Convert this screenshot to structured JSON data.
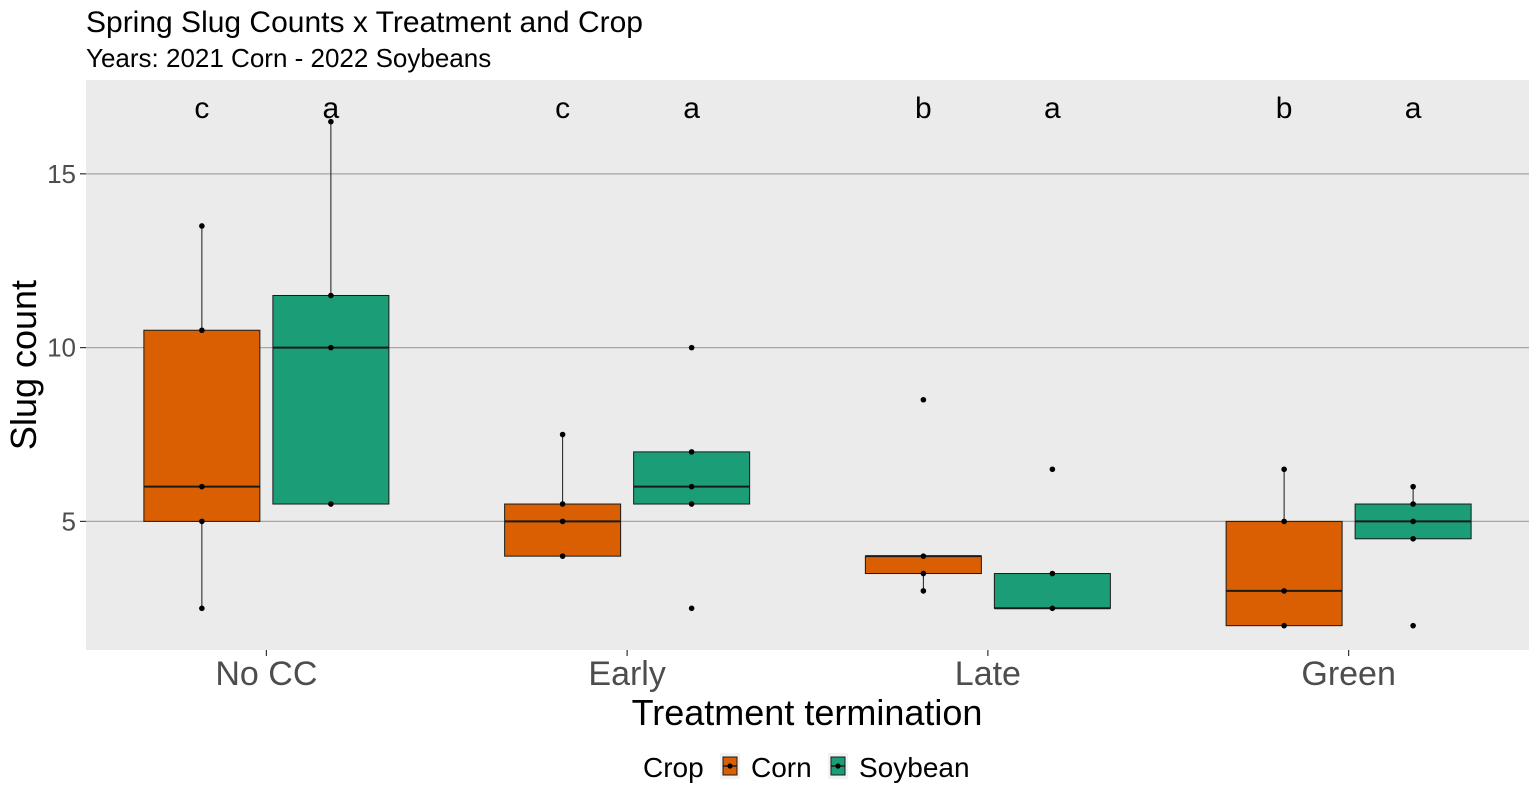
{
  "chart_data": {
    "type": "box",
    "title": "Spring Slug Counts x Treatment and Crop",
    "subtitle": "Years: 2021 Corn - 2022 Soybeans",
    "xlabel": "Treatment termination",
    "ylabel": "Slug count",
    "categories": [
      "No CC",
      "Early",
      "Late",
      "Green"
    ],
    "yticks": [
      5,
      10,
      15
    ],
    "ylim": [
      1.3,
      17.7
    ],
    "grid": true,
    "legend": {
      "title": "Crop",
      "position": "bottom"
    },
    "series": [
      {
        "name": "Corn",
        "color": "#d95f02",
        "boxes": [
          {
            "q1": 5,
            "median": 6,
            "q3": 10.5,
            "whisker_low": 2.5,
            "whisker_high": 13.5,
            "points": [
              2.5,
              5,
              6,
              10.5,
              13.5
            ],
            "letter": "c"
          },
          {
            "q1": 4,
            "median": 5,
            "q3": 5.5,
            "whisker_low": 4,
            "whisker_high": 7.5,
            "points": [
              4,
              5,
              5.5,
              7.5
            ],
            "letter": "c"
          },
          {
            "q1": 3.5,
            "median": 4,
            "q3": 4,
            "whisker_low": 3,
            "whisker_high": 4,
            "points": [
              3,
              3.5,
              4,
              8.5
            ],
            "letter": "b"
          },
          {
            "q1": 2,
            "median": 3,
            "q3": 5,
            "whisker_low": 2,
            "whisker_high": 6.5,
            "points": [
              2,
              3,
              5,
              6.5
            ],
            "letter": "b"
          }
        ]
      },
      {
        "name": "Soybean",
        "color": "#1b9e77",
        "boxes": [
          {
            "q1": 5.5,
            "median": 10,
            "q3": 11.5,
            "whisker_low": 5.5,
            "whisker_high": 16.5,
            "points": [
              5.5,
              10,
              11.5,
              16.5
            ],
            "letter": "a"
          },
          {
            "q1": 5.5,
            "median": 6,
            "q3": 7,
            "whisker_low": 5.5,
            "whisker_high": 7,
            "points": [
              2.5,
              5.5,
              6,
              7,
              10
            ],
            "letter": "a"
          },
          {
            "q1": 2.5,
            "median": 2.5,
            "q3": 3.5,
            "whisker_low": 2.5,
            "whisker_high": 3.5,
            "points": [
              2.5,
              3.5,
              6.5
            ],
            "letter": "a"
          },
          {
            "q1": 4.5,
            "median": 5,
            "q3": 5.5,
            "whisker_low": 4.5,
            "whisker_high": 6,
            "points": [
              2,
              4.5,
              5,
              5.5,
              6
            ],
            "letter": "a"
          }
        ]
      }
    ]
  }
}
